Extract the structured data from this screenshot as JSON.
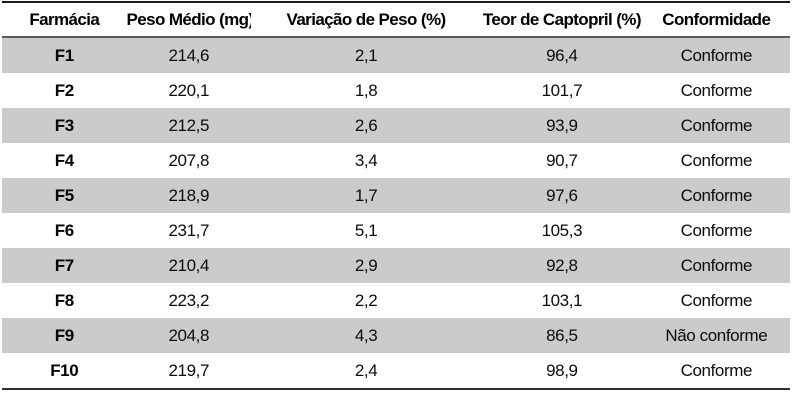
{
  "table": {
    "columns": [
      "Farmácia",
      "Peso Médio (mg)",
      "Variação de Peso (%)",
      "Teor de Captopril (%)",
      "Conformidade"
    ],
    "rows": [
      {
        "pharmacy": "F1",
        "avg_weight": "214,6",
        "weight_variation": "2,1",
        "captopril_content": "96,4",
        "conformity": "Conforme"
      },
      {
        "pharmacy": "F2",
        "avg_weight": "220,1",
        "weight_variation": "1,8",
        "captopril_content": "101,7",
        "conformity": "Conforme"
      },
      {
        "pharmacy": "F3",
        "avg_weight": "212,5",
        "weight_variation": "2,6",
        "captopril_content": "93,9",
        "conformity": "Conforme"
      },
      {
        "pharmacy": "F4",
        "avg_weight": "207,8",
        "weight_variation": "3,4",
        "captopril_content": "90,7",
        "conformity": "Conforme"
      },
      {
        "pharmacy": "F5",
        "avg_weight": "218,9",
        "weight_variation": "1,7",
        "captopril_content": "97,6",
        "conformity": "Conforme"
      },
      {
        "pharmacy": "F6",
        "avg_weight": "231,7",
        "weight_variation": "5,1",
        "captopril_content": "105,3",
        "conformity": "Conforme"
      },
      {
        "pharmacy": "F7",
        "avg_weight": "210,4",
        "weight_variation": "2,9",
        "captopril_content": "92,8",
        "conformity": "Conforme"
      },
      {
        "pharmacy": "F8",
        "avg_weight": "223,2",
        "weight_variation": "2,2",
        "captopril_content": "103,1",
        "conformity": "Conforme"
      },
      {
        "pharmacy": "F9",
        "avg_weight": "204,8",
        "weight_variation": "4,3",
        "captopril_content": "86,5",
        "conformity": "Não conforme"
      },
      {
        "pharmacy": "F10",
        "avg_weight": "219,7",
        "weight_variation": "2,4",
        "captopril_content": "98,9",
        "conformity": "Conforme"
      }
    ]
  },
  "colors": {
    "row_stripe": "#cbcbcb",
    "header_rule": "#595959",
    "outer_border": "#1a1a1a"
  },
  "chart_data": {
    "type": "table",
    "columns": [
      "Farmácia",
      "Peso Médio (mg)",
      "Variação de Peso (%)",
      "Teor de Captopril (%)",
      "Conformidade"
    ],
    "pharmacies": [
      "F1",
      "F2",
      "F3",
      "F4",
      "F5",
      "F6",
      "F7",
      "F8",
      "F9",
      "F10"
    ],
    "avg_weight_mg": [
      214.6,
      220.1,
      212.5,
      207.8,
      218.9,
      231.7,
      210.4,
      223.2,
      204.8,
      219.7
    ],
    "weight_variation_pct": [
      2.1,
      1.8,
      2.6,
      3.4,
      1.7,
      5.1,
      2.9,
      2.2,
      4.3,
      2.4
    ],
    "captopril_content_pct": [
      96.4,
      101.7,
      93.9,
      90.7,
      97.6,
      105.3,
      92.8,
      103.1,
      86.5,
      98.9
    ],
    "conformity": [
      "Conforme",
      "Conforme",
      "Conforme",
      "Conforme",
      "Conforme",
      "Conforme",
      "Conforme",
      "Conforme",
      "Não conforme",
      "Conforme"
    ]
  }
}
